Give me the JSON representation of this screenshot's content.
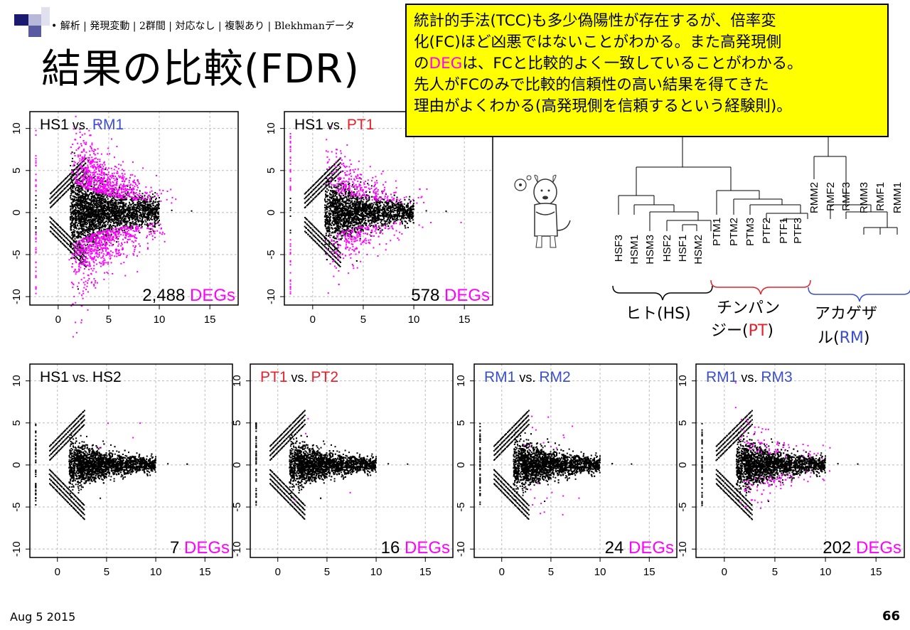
{
  "breadcrumb": "• 解析 | 発現変動 | 2群間 | 対応なし | 複製あり | Blekhmanデータ",
  "title": "結果の比較(FDR)",
  "callout": {
    "line1": "統計的手法(TCC)も多少偽陽性が存在するが、倍率変",
    "line2": "化(FC)ほど凶悪ではないことがわかる。また高発現側",
    "line3_pre": "の",
    "line3_hl": "DEG",
    "line3_post": "は、FCと比較的よく一致していることがわかる。",
    "line4": "先人がFCのみで比較的信頼性の高い結果を得てきた",
    "line5": "理由がよくわかる(高発現側を信頼するという経験則)。"
  },
  "colors": {
    "black": "#000000",
    "magenta": "#ff00ff",
    "red": "#e8202a",
    "blue": "#3a4fd0",
    "callout": "#ffff00"
  },
  "plots": [
    {
      "id": "p1",
      "a": "HS1",
      "a_color": "black",
      "vs": "vs.",
      "b": "RM1",
      "b_color": "blue",
      "count": "2,488",
      "deg": "DEGs",
      "degs_level": "high"
    },
    {
      "id": "p2",
      "a": "HS1",
      "a_color": "black",
      "vs": "vs.",
      "b": "PT1",
      "b_color": "red",
      "count": "578",
      "deg": "DEGs",
      "degs_level": "mid"
    },
    {
      "id": "p3",
      "a": "HS1",
      "a_color": "black",
      "vs": "vs.",
      "b": "HS2",
      "b_color": "black",
      "count": "7",
      "deg": "DEGs",
      "degs_level": "low"
    },
    {
      "id": "p4",
      "a": "PT1",
      "a_color": "red",
      "vs": "vs.",
      "b": "PT2",
      "b_color": "red",
      "count": "16",
      "deg": "DEGs",
      "degs_level": "low"
    },
    {
      "id": "p5",
      "a": "RM1",
      "a_color": "blue",
      "vs": "vs.",
      "b": "RM2",
      "b_color": "blue",
      "count": "24",
      "deg": "DEGs",
      "degs_level": "lowmid"
    },
    {
      "id": "p6",
      "a": "RM1",
      "a_color": "blue",
      "vs": "vs.",
      "b": "RM3",
      "b_color": "blue",
      "count": "202",
      "deg": "DEGs",
      "degs_level": "midlow"
    }
  ],
  "axes": {
    "x_ticks": [
      "0",
      "5",
      "10",
      "15"
    ],
    "y_ticks": [
      "10",
      "5",
      "0",
      "-5",
      "-10"
    ]
  },
  "dendrogram": {
    "hs_leaves": [
      "HSF3",
      "HSM1",
      "HSM3",
      "HSF2",
      "HSF1",
      "HSM2"
    ],
    "pt_leaves": [
      "PTM1",
      "PTM2",
      "PTM3",
      "PTF2",
      "PTF1",
      "PTF3"
    ],
    "rm_leaves": [
      "RMM2",
      "RMF2",
      "RMF3",
      "RMM3",
      "RMF1",
      "RMM1"
    ],
    "hs_label": "ヒト(HS)",
    "pt_label_1": "チンパン",
    "pt_label_2_pre": "ジー(",
    "pt_label_2_hl": "PT",
    "pt_label_2_post": ")",
    "rm_label_1": "アカゲザ",
    "rm_label_2_pre": "ル(",
    "rm_label_2_hl": "RM",
    "rm_label_2_post": ")"
  },
  "footer": {
    "date": "Aug 5 2015",
    "page": "66"
  }
}
